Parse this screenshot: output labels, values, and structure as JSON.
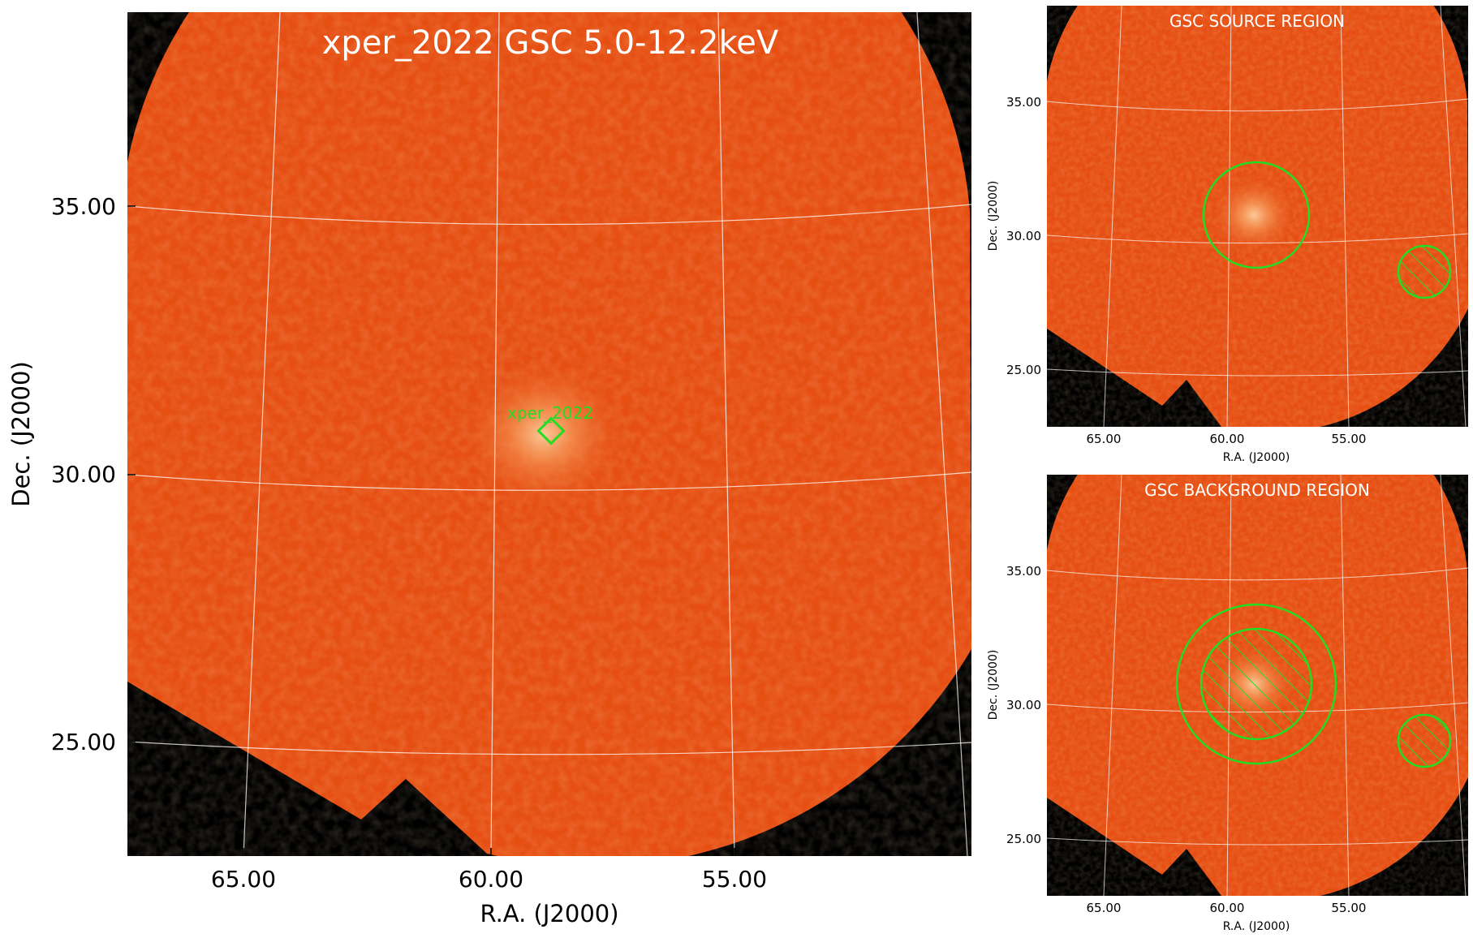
{
  "main_panel": {
    "title": "xper_2022 GSC 5.0-12.2keV",
    "xlabel": "R.A. (J2000)",
    "ylabel": "Dec. (J2000)",
    "xticks": [
      "65.00",
      "60.00",
      "55.00"
    ],
    "yticks": [
      "35.00",
      "30.00",
      "25.00"
    ],
    "source_label": "xper_2022"
  },
  "source_panel": {
    "title": "GSC SOURCE REGION",
    "xlabel": "R.A. (J2000)",
    "ylabel": "Dec. (J2000)",
    "xticks": [
      "65.00",
      "60.00",
      "55.00"
    ],
    "yticks": [
      "35.00",
      "30.00",
      "25.00"
    ]
  },
  "background_panel": {
    "title": "GSC BACKGROUND REGION",
    "xlabel": "R.A. (J2000)",
    "ylabel": "Dec. (J2000)",
    "xticks": [
      "65.00",
      "60.00",
      "55.00"
    ],
    "yticks": [
      "35.00",
      "30.00",
      "25.00"
    ]
  },
  "colors": {
    "field": "#e64e12",
    "source_glow": "#fbb77c",
    "region": "#22dd22",
    "background": "#000000"
  }
}
